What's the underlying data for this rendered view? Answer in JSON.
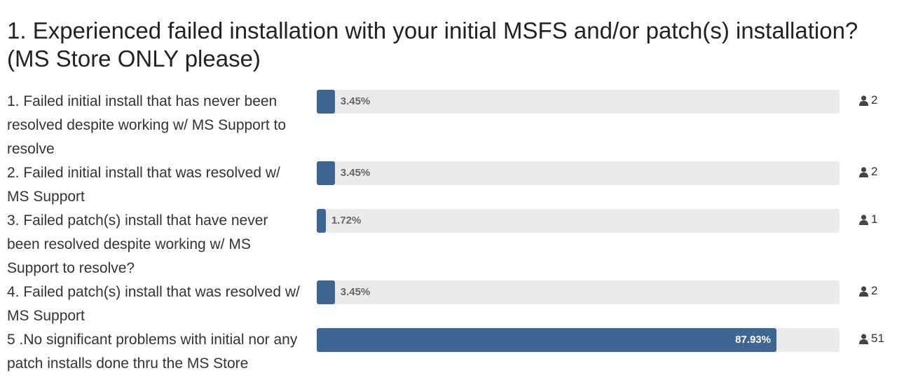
{
  "chart_data": {
    "type": "bar",
    "orientation": "horizontal",
    "title": "1. Experienced failed installation with your initial MSFS and/or patch(s) installation? (MS Store ONLY please)",
    "categories": [
      "1. Failed initial install that has never been resolved despite working w/ MS Support to resolve",
      "2. Failed initial install that was resolved w/ MS Support",
      "3. Failed patch(s) install that have never been resolved despite working w/ MS Support to resolve?",
      "4. Failed patch(s) install that was resolved w/ MS Support",
      "5 .No significant problems with initial nor any patch installs done thru the MS Store"
    ],
    "values": [
      3.45,
      3.45,
      1.72,
      3.45,
      87.93
    ],
    "value_labels": [
      "3.45%",
      "3.45%",
      "1.72%",
      "3.45%",
      "87.93%"
    ],
    "counts": [
      2,
      2,
      1,
      2,
      51
    ],
    "xlim": [
      0,
      100
    ],
    "color": "#3f6592",
    "track_color": "#ebebeb"
  }
}
